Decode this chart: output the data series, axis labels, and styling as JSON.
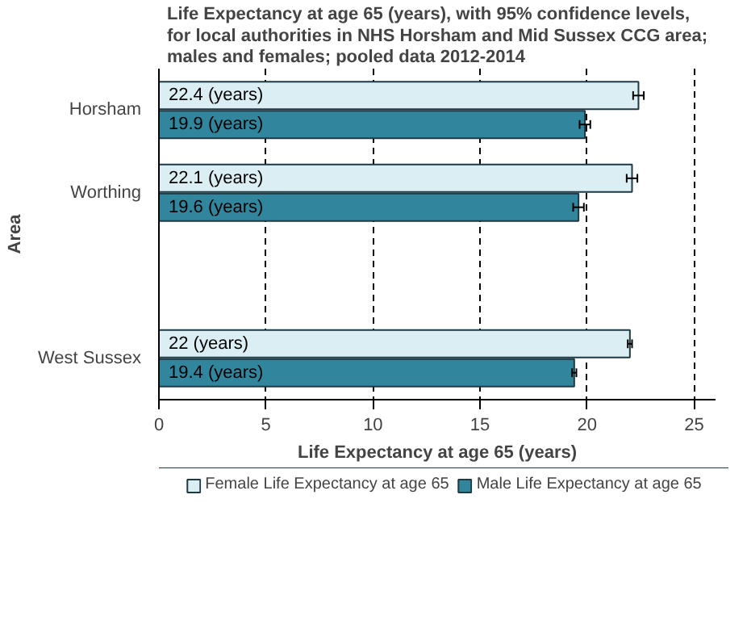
{
  "chart_data": {
    "type": "bar",
    "orientation": "horizontal",
    "title": "Life Expectancy at age 65 (years), with 95% confidence levels, for local authorities in NHS Horsham and Mid Sussex CCG area; males and females; pooled data 2012-2014",
    "xlabel": "Life Expectancy at age 65 (years)",
    "ylabel": "Area",
    "categories": [
      "Horsham",
      "Worthing",
      null,
      "West Sussex"
    ],
    "series": [
      {
        "name": "Female Life Expectancy at age 65",
        "color": "#daeef3",
        "values": [
          22.4,
          22.1,
          null,
          22
        ],
        "errors": [
          0.25,
          0.25,
          null,
          0.1
        ],
        "value_labels": [
          "22.4 (years)",
          "22.1 (years)",
          null,
          "22 (years)"
        ]
      },
      {
        "name": "Male Life Expectancy at age 65",
        "color": "#31859c",
        "values": [
          19.9,
          19.6,
          null,
          19.4
        ],
        "errors": [
          0.25,
          0.25,
          null,
          0.1
        ],
        "value_labels": [
          "19.9 (years)",
          "19.6 (years)",
          null,
          "19.4 (years)"
        ]
      }
    ],
    "xlim": [
      0,
      26
    ],
    "xticks": [
      0,
      5,
      10,
      15,
      20,
      25
    ],
    "grid": "x",
    "legend": "bottom"
  }
}
